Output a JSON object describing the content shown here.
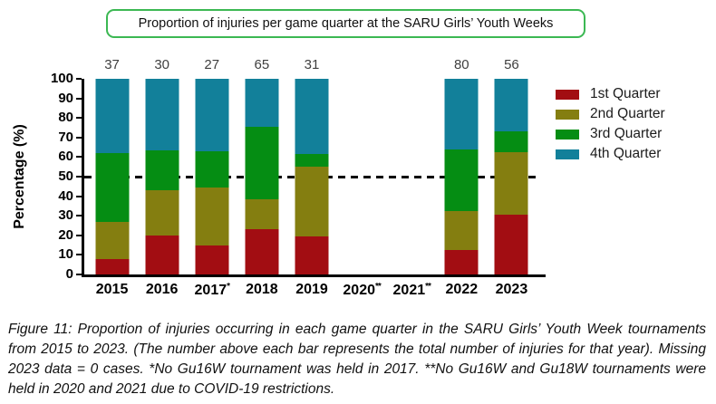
{
  "title_box": {
    "text": "Proportion of injuries per game quarter at the SARU Girls’ Youth Weeks",
    "border_color": "#3cb853"
  },
  "chart_data": {
    "type": "bar",
    "stacked": true,
    "title": "Proportion of injuries per game quarter at the SARU Girls’ Youth Weeks",
    "ylabel": "Percentage (%)",
    "xlabel": "",
    "ylim": [
      0,
      100
    ],
    "y_ticks": [
      0,
      10,
      20,
      30,
      40,
      50,
      60,
      70,
      80,
      90,
      100
    ],
    "reference_line_y": 50,
    "legend_position": "right",
    "categories": [
      {
        "label": "2015",
        "marker": ""
      },
      {
        "label": "2016",
        "marker": ""
      },
      {
        "label": "2017",
        "marker": "*"
      },
      {
        "label": "2018",
        "marker": ""
      },
      {
        "label": "2019",
        "marker": ""
      },
      {
        "label": "2020",
        "marker": "**"
      },
      {
        "label": "2021",
        "marker": "**"
      },
      {
        "label": "2022",
        "marker": ""
      },
      {
        "label": "2023",
        "marker": ""
      }
    ],
    "totals": [
      "37",
      "30",
      "27",
      "65",
      "31",
      "",
      "",
      "80",
      "56"
    ],
    "series": [
      {
        "name": "1st Quarter",
        "color": "#a20d12",
        "values": [
          8.1,
          20.0,
          14.8,
          23.1,
          19.4,
          0,
          0,
          12.5,
          30.4
        ]
      },
      {
        "name": "2nd Quarter",
        "color": "#847e10",
        "values": [
          18.9,
          23.3,
          29.6,
          15.4,
          35.5,
          0,
          0,
          20.0,
          32.1
        ]
      },
      {
        "name": "3rd Quarter",
        "color": "#058d13",
        "values": [
          35.1,
          20.0,
          18.5,
          36.9,
          6.5,
          0,
          0,
          31.3,
          10.7
        ]
      },
      {
        "name": "4th Quarter",
        "color": "#12809a",
        "values": [
          37.8,
          36.7,
          37.0,
          24.6,
          38.7,
          0,
          0,
          36.3,
          26.8
        ]
      }
    ]
  },
  "caption": {
    "text": "Figure 11: Proportion of injuries occurring in each game quarter in the SARU Girls’ Youth Week tournaments from 2015 to 2023. (The number above each bar represents the total number of injuries for that year). Missing 2023 data = 0 cases. *No Gu16W tournament was held in 2017. **No Gu16W and Gu18W tournaments were held in 2020 and 2021 due to COVID-19 restrictions."
  }
}
